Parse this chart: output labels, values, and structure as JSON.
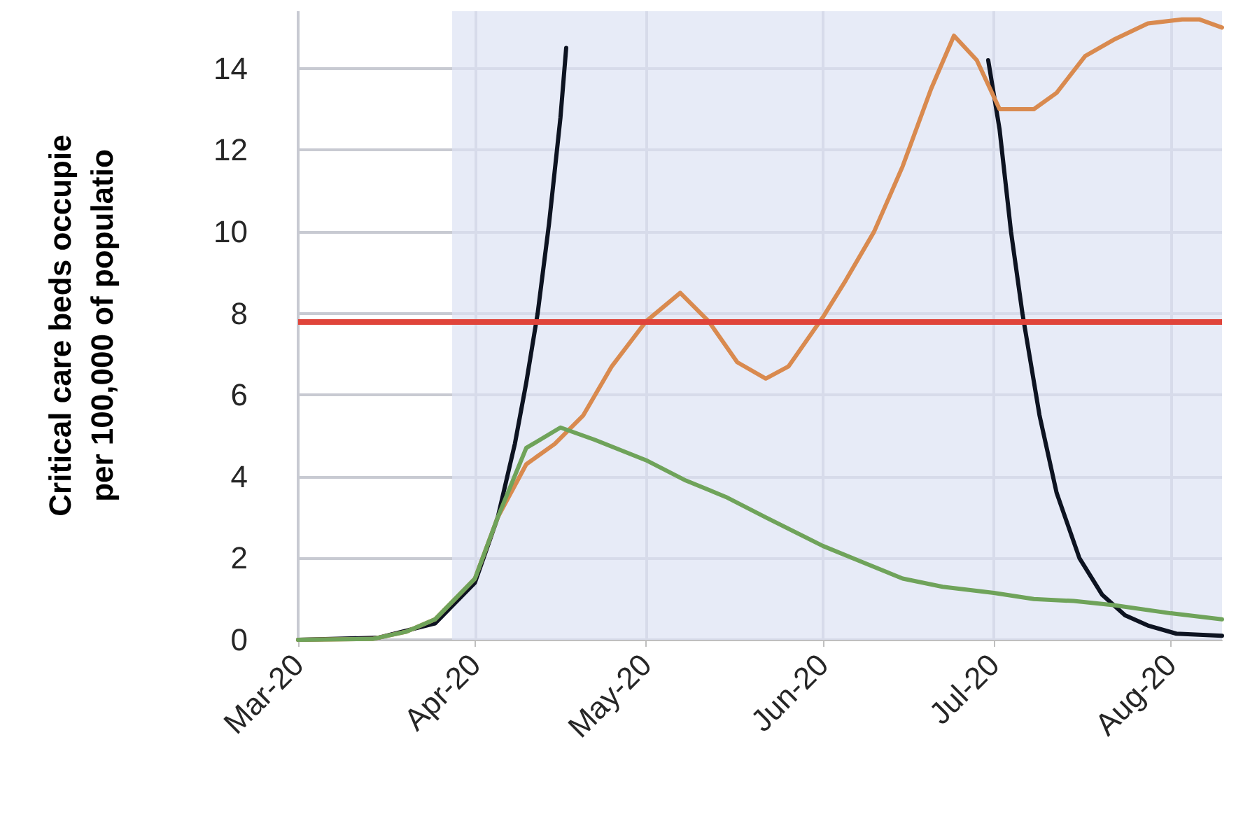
{
  "chart_data": {
    "type": "line",
    "ylabel": "Critical care beds occupie\nper 100,000 of populatio",
    "xlim": [
      "2020-03-01",
      "2020-08-10"
    ],
    "xticks": [
      {
        "value": "2020-03-01",
        "label": "Mar-20"
      },
      {
        "value": "2020-04-01",
        "label": "Apr-20"
      },
      {
        "value": "2020-05-01",
        "label": "May-20"
      },
      {
        "value": "2020-06-01",
        "label": "Jun-20"
      },
      {
        "value": "2020-07-01",
        "label": "Jul-20"
      },
      {
        "value": "2020-08-01",
        "label": "Aug-20"
      }
    ],
    "ylim": [
      0,
      15.4
    ],
    "yticks": [
      0,
      2,
      4,
      6,
      8,
      10,
      12,
      14
    ],
    "grid": true,
    "marker": "none",
    "line_style": "solid",
    "series": [
      {
        "color": "#0d1321",
        "x": [
          "2020-03-01",
          "2020-03-15",
          "2020-03-25",
          "2020-04-01",
          "2020-04-05",
          "2020-04-08",
          "2020-04-10",
          "2020-04-12",
          "2020-04-14",
          "2020-04-16",
          "2020-04-17",
          "2020-04-25",
          "2020-06-20",
          "2020-06-30",
          "2020-07-02",
          "2020-07-04",
          "2020-07-06",
          "2020-07-09",
          "2020-07-12",
          "2020-07-16",
          "2020-07-20",
          "2020-07-24",
          "2020-07-28",
          "2020-08-02",
          "2020-08-10"
        ],
        "values": [
          0,
          0.05,
          0.4,
          1.4,
          3,
          4.8,
          6.3,
          8,
          10.2,
          12.8,
          14.5,
          null,
          null,
          14.2,
          12.5,
          10,
          8,
          5.5,
          3.6,
          2,
          1.1,
          0.6,
          0.35,
          0.15,
          0.1
        ]
      },
      {
        "color": "#d98a4f",
        "x": [
          "2020-03-01",
          "2020-03-14",
          "2020-03-20",
          "2020-03-25",
          "2020-04-01",
          "2020-04-05",
          "2020-04-10",
          "2020-04-15",
          "2020-04-20",
          "2020-04-25",
          "2020-05-01",
          "2020-05-07",
          "2020-05-12",
          "2020-05-17",
          "2020-05-22",
          "2020-05-26",
          "2020-06-01",
          "2020-06-05",
          "2020-06-10",
          "2020-06-15",
          "2020-06-20",
          "2020-06-24",
          "2020-06-28",
          "2020-07-02",
          "2020-07-08",
          "2020-07-12",
          "2020-07-17",
          "2020-07-22",
          "2020-07-28",
          "2020-08-03",
          "2020-08-06",
          "2020-08-10"
        ],
        "values": [
          0,
          0.02,
          0.2,
          0.5,
          1.5,
          3,
          4.3,
          4.8,
          5.5,
          6.7,
          7.8,
          8.5,
          7.8,
          6.8,
          6.4,
          6.7,
          7.9,
          8.8,
          10,
          11.6,
          13.5,
          14.8,
          14.2,
          13,
          13,
          13.4,
          14.3,
          14.7,
          15.1,
          15.2,
          15.2,
          15
        ]
      },
      {
        "color": "#6fa35a",
        "x": [
          "2020-03-01",
          "2020-03-14",
          "2020-03-20",
          "2020-03-25",
          "2020-04-01",
          "2020-04-05",
          "2020-04-10",
          "2020-04-16",
          "2020-04-22",
          "2020-05-01",
          "2020-05-08",
          "2020-05-15",
          "2020-05-22",
          "2020-06-01",
          "2020-06-08",
          "2020-06-15",
          "2020-06-22",
          "2020-07-01",
          "2020-07-08",
          "2020-07-15",
          "2020-07-22",
          "2020-08-01",
          "2020-08-10"
        ],
        "values": [
          0,
          0.02,
          0.2,
          0.5,
          1.5,
          3,
          4.7,
          5.2,
          4.9,
          4.4,
          3.9,
          3.5,
          3,
          2.3,
          1.9,
          1.5,
          1.3,
          1.15,
          1,
          0.95,
          0.85,
          0.65,
          0.5
        ]
      }
    ],
    "ref_lines": [
      {
        "axis": "y",
        "value": 7.8,
        "color": "#e0443a"
      }
    ],
    "bands": [
      {
        "axis": "x",
        "from": "2020-03-28",
        "to": "2020-08-10",
        "color": "#dde3f3"
      }
    ]
  }
}
